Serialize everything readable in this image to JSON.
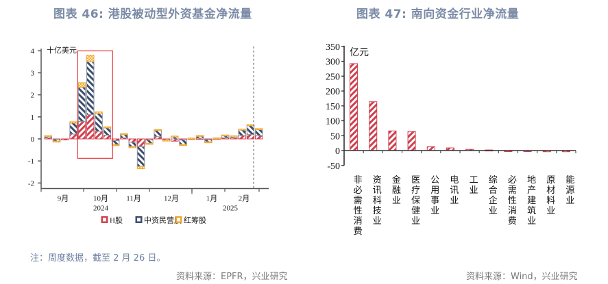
{
  "left": {
    "title": "图表 46: 港股被动型外资基金净流量",
    "note": "注：周度数据，截至 2 月 26 日。",
    "source": "资料来源：EPFR，兴业研究"
  },
  "right": {
    "title": "图表 47: 南向资金行业净流量",
    "source": "资料来源：Wind，兴业研究"
  },
  "colors": {
    "h": "#d0404f",
    "private": "#3d4d6b",
    "redchip": "#f0a830",
    "highlight": "#e83a3a"
  },
  "chart_data": [
    {
      "type": "bar",
      "stacked": true,
      "title": "图表 46: 港股被动型外资基金净流量",
      "ylabel": "十亿美元",
      "ylim": [
        -2,
        4
      ],
      "yticks": [
        -2,
        -1,
        0,
        1,
        2,
        3,
        4
      ],
      "x_month_labels": [
        "9月",
        "10月",
        "11月",
        "12月",
        "1月",
        "2月"
      ],
      "x_year_labels": [
        "2024",
        "2025"
      ],
      "legend": [
        "H股",
        "中资民营股",
        "红筹股"
      ],
      "legend_position": "bottom",
      "annotations": [
        "red box highlighting late Sep - early Oct 2024 inflows",
        "dashed vertical line near start of Feb 2025 (latest week)"
      ],
      "series": [
        {
          "name": "H股",
          "values": [
            0.05,
            -0.02,
            -0.02,
            0.22,
            0.8,
            1.1,
            0.35,
            0.17,
            -0.08,
            0.05,
            -0.15,
            -0.35,
            -0.05,
            0.1,
            -0.05,
            -0.1,
            -0.05,
            0.02,
            0.03,
            -0.03,
            0.03,
            0.05,
            0.05,
            0.15,
            0.2,
            0.15
          ]
        },
        {
          "name": "中资民营股",
          "values": [
            0.07,
            -0.08,
            0,
            0.5,
            1.55,
            2.4,
            0.8,
            0.33,
            -0.18,
            0.17,
            -0.2,
            -0.9,
            -0.15,
            0.3,
            0,
            0.1,
            -0.2,
            0,
            0.1,
            -0.1,
            0,
            0.1,
            0.07,
            0.25,
            0.4,
            0.27
          ]
        },
        {
          "name": "红筹股",
          "values": [
            0.03,
            -0.02,
            0,
            0.06,
            0.2,
            0.3,
            0.08,
            0.05,
            -0.04,
            0.02,
            -0.05,
            -0.1,
            -0.03,
            0.03,
            -0.02,
            0.03,
            -0.05,
            0.02,
            0.03,
            -0.02,
            0.02,
            0.03,
            0.02,
            0.05,
            0.05,
            0.05
          ]
        }
      ]
    },
    {
      "type": "bar",
      "title": "图表 47: 南向资金行业净流量",
      "ylabel": "亿元",
      "ylim": [
        -50,
        350
      ],
      "yticks": [
        -50,
        0,
        50,
        100,
        150,
        200,
        250,
        300,
        350
      ],
      "categories": [
        "非必需性消费",
        "资讯科技业",
        "金融业",
        "医疗保健业",
        "公用事业",
        "电讯业",
        "工业",
        "综合企业",
        "必需性消费",
        "地产建筑业",
        "原材料业",
        "能源业"
      ],
      "values": [
        292,
        164,
        66,
        64,
        13,
        9,
        4,
        2,
        -2,
        -2,
        -4,
        -4
      ]
    }
  ]
}
